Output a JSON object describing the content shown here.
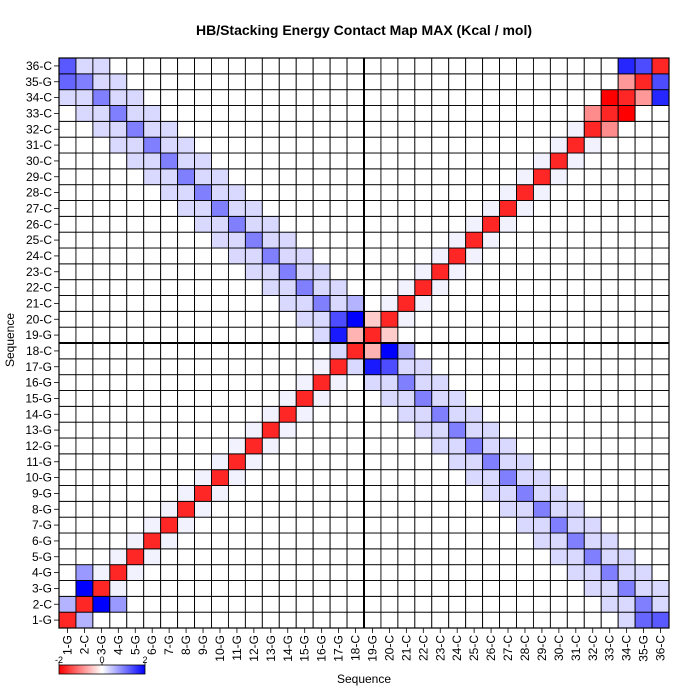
{
  "chart_data": {
    "type": "heatmap",
    "title": "HB/Stacking Energy Contact Map MAX (Kcal / mol)",
    "xlabel": "Sequence",
    "ylabel": "Sequence",
    "labels": [
      "1-G",
      "2-C",
      "3-G",
      "4-G",
      "5-G",
      "6-G",
      "7-G",
      "8-G",
      "9-G",
      "10-G",
      "11-G",
      "12-G",
      "13-G",
      "14-G",
      "15-G",
      "16-G",
      "17-G",
      "18-C",
      "19-G",
      "20-C",
      "21-C",
      "22-C",
      "23-C",
      "24-C",
      "25-C",
      "26-C",
      "27-C",
      "28-C",
      "29-C",
      "30-C",
      "31-C",
      "32-C",
      "33-C",
      "34-C",
      "35-G",
      "36-C"
    ],
    "colorbar": {
      "min": -2,
      "max": 2,
      "tick_labels": [
        "-2",
        "0",
        "2"
      ],
      "low_color": "#ff0000",
      "mid_color": "#ffffff",
      "high_color": "#0000ff"
    },
    "diagonal_value": -1.7,
    "near_diagonal_value": 0.1,
    "pair_band_value": 0.3,
    "antidiagonal_value": 1.0,
    "cells": [
      [
        2,
        3,
        2.0
      ],
      [
        3,
        2,
        2.0
      ],
      [
        34,
        36,
        1.7
      ],
      [
        36,
        34,
        1.7
      ],
      [
        35,
        36,
        1.4
      ],
      [
        36,
        35,
        1.4
      ],
      [
        1,
        35,
        1.2
      ],
      [
        35,
        1,
        1.2
      ],
      [
        1,
        36,
        1.3
      ],
      [
        36,
        1,
        1.3
      ],
      [
        1,
        2,
        0.6
      ],
      [
        2,
        1,
        0.6
      ],
      [
        18,
        20,
        2.0
      ],
      [
        20,
        18,
        2.0
      ],
      [
        17,
        19,
        1.8
      ],
      [
        19,
        17,
        1.8
      ],
      [
        19,
        20,
        -0.4
      ],
      [
        20,
        19,
        -0.4
      ],
      [
        17,
        20,
        1.4
      ],
      [
        20,
        17,
        1.4
      ],
      [
        18,
        21,
        0.6
      ],
      [
        21,
        18,
        0.6
      ],
      [
        2,
        4,
        0.8
      ],
      [
        4,
        2,
        0.8
      ],
      [
        33,
        34,
        -2.0
      ],
      [
        34,
        33,
        -2.0
      ],
      [
        32,
        33,
        -0.9
      ],
      [
        33,
        32,
        -0.9
      ],
      [
        18,
        19,
        -0.6
      ],
      [
        19,
        18,
        -0.6
      ],
      [
        34,
        35,
        -0.8
      ],
      [
        35,
        34,
        -0.8
      ]
    ]
  }
}
